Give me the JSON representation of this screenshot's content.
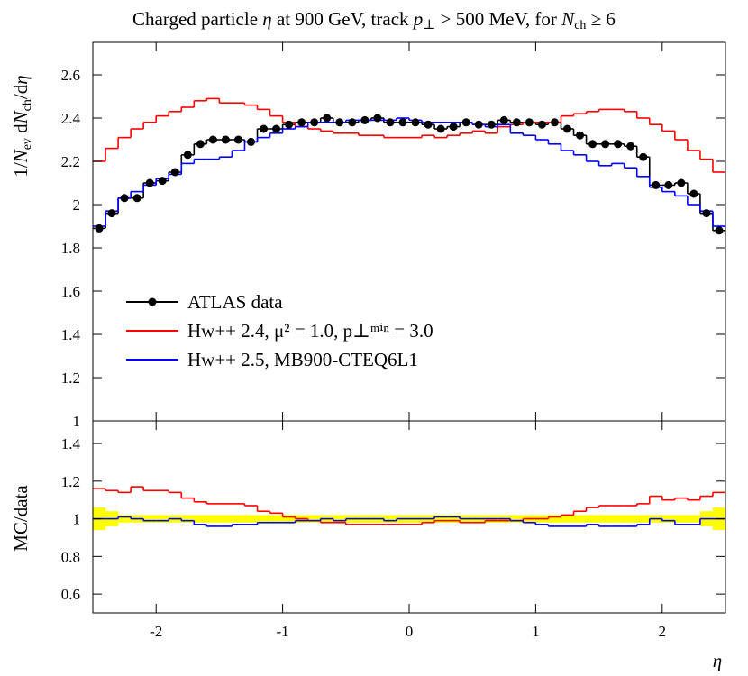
{
  "chart_data": [
    {
      "type": "histogram",
      "title": [
        "Charged particle ",
        "η",
        " at 900 GeV, track ",
        "p",
        "⊥",
        " > 500 MeV, for ",
        "N",
        "ch",
        " ≥ 6"
      ],
      "ylabel": [
        "1/",
        "N",
        "ev",
        " d",
        "N",
        "ch",
        "/d",
        "η"
      ],
      "bins": [
        -2.5,
        -2.4,
        -2.3,
        -2.2,
        -2.1,
        -2,
        -1.9,
        -1.8,
        -1.7,
        -1.6,
        -1.5,
        -1.4,
        -1.3,
        -1.2,
        -1.1,
        -1,
        -0.9,
        -0.8,
        -0.7,
        -0.6,
        -0.5,
        -0.4,
        -0.3,
        -0.2,
        -0.1,
        0,
        0.1,
        0.2,
        0.3,
        0.4,
        0.5,
        0.6,
        0.7,
        0.8,
        0.9,
        1,
        1.1,
        1.2,
        1.3,
        1.4,
        1.5,
        1.6,
        1.7,
        1.8,
        1.9,
        2,
        2.1,
        2.2,
        2.3,
        2.4,
        2.5
      ],
      "xlim": [
        -2.5,
        2.5
      ],
      "ylim": [
        1,
        2.75
      ],
      "yticks": [
        1,
        1.2,
        1.4,
        1.6,
        1.8,
        2,
        2.2,
        2.4,
        2.6
      ],
      "legend": "center left",
      "series": [
        {
          "name": "ATLAS data",
          "color": "#000000",
          "marker": "circle",
          "values": [
            1.89,
            1.96,
            2.03,
            2.03,
            2.1,
            2.11,
            2.15,
            2.23,
            2.28,
            2.3,
            2.3,
            2.3,
            2.29,
            2.35,
            2.35,
            2.37,
            2.38,
            2.38,
            2.4,
            2.38,
            2.38,
            2.39,
            2.4,
            2.38,
            2.38,
            2.38,
            2.37,
            2.35,
            2.36,
            2.38,
            2.37,
            2.37,
            2.39,
            2.38,
            2.38,
            2.37,
            2.38,
            2.35,
            2.32,
            2.28,
            2.28,
            2.28,
            2.27,
            2.22,
            2.09,
            2.09,
            2.1,
            2.05,
            1.96,
            1.88
          ]
        },
        {
          "name": "Hw++ 2.4, μ² = 1.0, p⊥ᵐⁱⁿ = 3.0",
          "color": "#ff0000",
          "values": [
            2.2,
            2.26,
            2.31,
            2.35,
            2.38,
            2.41,
            2.43,
            2.45,
            2.48,
            2.49,
            2.47,
            2.47,
            2.46,
            2.44,
            2.41,
            2.38,
            2.36,
            2.35,
            2.34,
            2.33,
            2.33,
            2.32,
            2.32,
            2.31,
            2.31,
            2.31,
            2.32,
            2.31,
            2.32,
            2.33,
            2.34,
            2.33,
            2.36,
            2.37,
            2.38,
            2.38,
            2.38,
            2.41,
            2.42,
            2.43,
            2.44,
            2.44,
            2.43,
            2.4,
            2.37,
            2.34,
            2.3,
            2.25,
            2.21,
            2.15
          ]
        },
        {
          "name": "Hw++ 2.5, MB900-CTEQ6L1",
          "color": "#0000ff",
          "values": [
            1.9,
            1.97,
            2.03,
            2.06,
            2.09,
            2.12,
            2.14,
            2.19,
            2.21,
            2.21,
            2.22,
            2.25,
            2.29,
            2.31,
            2.33,
            2.35,
            2.36,
            2.38,
            2.38,
            2.38,
            2.39,
            2.39,
            2.39,
            2.39,
            2.4,
            2.39,
            2.38,
            2.38,
            2.38,
            2.38,
            2.37,
            2.36,
            2.37,
            2.33,
            2.32,
            2.3,
            2.28,
            2.25,
            2.23,
            2.2,
            2.18,
            2.19,
            2.17,
            2.13,
            2.08,
            2.06,
            2.04,
            2,
            1.97,
            1.9
          ]
        }
      ]
    },
    {
      "type": "histogram",
      "ylabel": "MC/data",
      "xlabel": "η",
      "bins": [
        -2.5,
        -2.4,
        -2.3,
        -2.2,
        -2.1,
        -2,
        -1.9,
        -1.8,
        -1.7,
        -1.6,
        -1.5,
        -1.4,
        -1.3,
        -1.2,
        -1.1,
        -1,
        -0.9,
        -0.8,
        -0.7,
        -0.6,
        -0.5,
        -0.4,
        -0.3,
        -0.2,
        -0.1,
        0,
        0.1,
        0.2,
        0.3,
        0.4,
        0.5,
        0.6,
        0.7,
        0.8,
        0.9,
        1,
        1.1,
        1.2,
        1.3,
        1.4,
        1.5,
        1.6,
        1.7,
        1.8,
        1.9,
        2,
        2.1,
        2.2,
        2.3,
        2.4,
        2.5
      ],
      "xlim": [
        -2.5,
        2.5
      ],
      "xticks": [
        -2,
        -1,
        0,
        1,
        2
      ],
      "ylim": [
        0.5,
        1.52
      ],
      "yticks": [
        0.6,
        0.8,
        1,
        1.2,
        1.4
      ],
      "band_color": "#ffff00",
      "errors": [
        0.06,
        0.04,
        0.02,
        0.02,
        0.02,
        0.02,
        0.02,
        0.02,
        0.02,
        0.02,
        0.02,
        0.02,
        0.02,
        0.02,
        0.02,
        0.02,
        0.02,
        0.02,
        0.02,
        0.02,
        0.02,
        0.02,
        0.02,
        0.02,
        0.02,
        0.02,
        0.02,
        0.02,
        0.02,
        0.02,
        0.02,
        0.02,
        0.02,
        0.02,
        0.02,
        0.02,
        0.02,
        0.02,
        0.02,
        0.02,
        0.02,
        0.02,
        0.02,
        0.02,
        0.02,
        0.02,
        0.02,
        0.02,
        0.04,
        0.06
      ],
      "series": [
        {
          "color": "#ff0000",
          "values": [
            1.16,
            1.15,
            1.14,
            1.17,
            1.15,
            1.15,
            1.14,
            1.11,
            1.09,
            1.08,
            1.08,
            1.08,
            1.07,
            1.04,
            1.03,
            1.01,
            1,
            0.99,
            0.98,
            0.98,
            0.97,
            0.97,
            0.97,
            0.97,
            0.97,
            0.97,
            0.98,
            0.99,
            0.99,
            0.98,
            0.98,
            0.99,
            0.99,
            0.99,
            1,
            1,
            1.01,
            1.02,
            1.04,
            1.06,
            1.07,
            1.07,
            1.07,
            1.08,
            1.12,
            1.1,
            1.11,
            1.1,
            1.12,
            1.14
          ]
        },
        {
          "color": "#0000ff",
          "values": [
            1,
            1,
            1.01,
            1,
            0.99,
            0.99,
            1,
            0.99,
            0.97,
            0.96,
            0.96,
            0.97,
            0.97,
            0.98,
            0.98,
            0.98,
            0.99,
            0.99,
            1,
            0.99,
            1,
            1,
            1,
            0.99,
            1,
            1,
            1,
            1.01,
            1.01,
            1,
            1,
            1,
            1,
            0.99,
            0.98,
            0.97,
            0.96,
            0.96,
            0.96,
            0.97,
            0.96,
            0.96,
            0.96,
            0.97,
            1,
            0.99,
            0.97,
            0.97,
            1,
            1
          ]
        }
      ]
    }
  ]
}
